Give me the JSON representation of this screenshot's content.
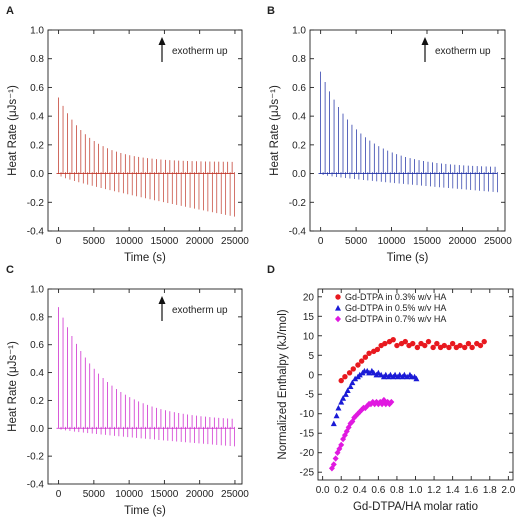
{
  "chart_data": [
    {
      "panel": "A",
      "type": "line",
      "xlabel": "Time (s)",
      "ylabel": "Heat Rate (μJs⁻¹)",
      "xlim": [
        -1500,
        26000
      ],
      "ylim": [
        -0.4,
        1.0
      ],
      "xticks": [
        "0",
        "5000",
        "10000",
        "15000",
        "20000",
        "25000"
      ],
      "xtick_values": [
        0,
        5000,
        10000,
        15000,
        20000,
        25000
      ],
      "yticks": [
        "-0.4",
        "-0.2",
        "0.0",
        "0.2",
        "0.4",
        "0.6",
        "0.8",
        "1.0"
      ],
      "ytick_values": [
        -0.4,
        -0.2,
        0.0,
        0.2,
        0.4,
        0.6,
        0.8,
        1.0
      ],
      "annotation": "exotherm up",
      "color": "#c0392b",
      "injections": {
        "count": 40,
        "start": 0,
        "end": 24600,
        "peak_start": 0.53,
        "peak_decay": 4500,
        "peak_floor": 0.08,
        "neg_start": -0.02,
        "neg_end": -0.3
      }
    },
    {
      "panel": "B",
      "type": "line",
      "xlabel": "Time (s)",
      "ylabel": "Heat Rate (μJs⁻¹)",
      "xlim": [
        -1500,
        26000
      ],
      "ylim": [
        -0.4,
        1.0
      ],
      "xticks": [
        "0",
        "5000",
        "10000",
        "15000",
        "20000",
        "25000"
      ],
      "xtick_values": [
        0,
        5000,
        10000,
        15000,
        20000,
        25000
      ],
      "yticks": [
        "-0.4",
        "-0.2",
        "0.0",
        "0.2",
        "0.4",
        "0.6",
        "0.8",
        "1.0"
      ],
      "ytick_values": [
        -0.4,
        -0.2,
        0.0,
        0.2,
        0.4,
        0.6,
        0.8,
        1.0
      ],
      "annotation": "exotherm up",
      "color": "#2233a6",
      "injections": {
        "count": 40,
        "start": 0,
        "end": 24600,
        "peak_start": 0.71,
        "peak_decay": 5500,
        "peak_floor": 0.04,
        "neg_start": -0.01,
        "neg_end": -0.13
      }
    },
    {
      "panel": "C",
      "type": "line",
      "xlabel": "Time (s)",
      "ylabel": "Heat Rate (μJs⁻¹)",
      "xlim": [
        -1500,
        26000
      ],
      "ylim": [
        -0.4,
        1.0
      ],
      "xticks": [
        "0",
        "5000",
        "10000",
        "15000",
        "20000",
        "25000"
      ],
      "xtick_values": [
        0,
        5000,
        10000,
        15000,
        20000,
        25000
      ],
      "yticks": [
        "-0.4",
        "-0.2",
        "0.0",
        "0.2",
        "0.4",
        "0.6",
        "0.8",
        "1.0"
      ],
      "ytick_values": [
        -0.4,
        -0.2,
        0.0,
        0.2,
        0.4,
        0.6,
        0.8,
        1.0
      ],
      "annotation": "exotherm up",
      "color": "#cc22cc",
      "injections": {
        "count": 40,
        "start": 0,
        "end": 24600,
        "peak_start": 0.87,
        "peak_decay": 6500,
        "peak_floor": 0.05,
        "neg_start": -0.01,
        "neg_end": -0.13
      }
    },
    {
      "panel": "D",
      "type": "scatter",
      "xlabel": "Gd-DTPA/HA molar ratio",
      "ylabel": "Normalized Enthalpy (kJ/mol)",
      "xlim": [
        -0.05,
        2.05
      ],
      "ylim": [
        -27,
        22
      ],
      "xticks": [
        "0.0",
        "0.2",
        "0.4",
        "0.6",
        "0.8",
        "1.0",
        "1.2",
        "1.4",
        "1.6",
        "1.8",
        "2.0"
      ],
      "xtick_values": [
        0.0,
        0.2,
        0.4,
        0.6,
        0.8,
        1.0,
        1.2,
        1.4,
        1.6,
        1.8,
        2.0
      ],
      "yticks": [
        "-25",
        "-20",
        "-15",
        "-10",
        "-5",
        "0",
        "5",
        "10",
        "15",
        "20"
      ],
      "ytick_values": [
        -25,
        -20,
        -15,
        -10,
        -5,
        0,
        5,
        10,
        15,
        20
      ],
      "legend_position": "top-right",
      "series": [
        {
          "name": "Gd-DTPA in 0.3% w/v HA",
          "marker": "circle",
          "color": "#e8191f",
          "points": [
            [
              0.2,
              -1.5
            ],
            [
              0.24,
              -0.5
            ],
            [
              0.29,
              0.5
            ],
            [
              0.33,
              1.5
            ],
            [
              0.38,
              2.5
            ],
            [
              0.42,
              3.5
            ],
            [
              0.46,
              4.5
            ],
            [
              0.5,
              5.5
            ],
            [
              0.55,
              6.0
            ],
            [
              0.59,
              6.5
            ],
            [
              0.63,
              7.5
            ],
            [
              0.67,
              8.0
            ],
            [
              0.72,
              8.5
            ],
            [
              0.76,
              9.0
            ],
            [
              0.8,
              7.5
            ],
            [
              0.85,
              8.0
            ],
            [
              0.89,
              8.5
            ],
            [
              0.93,
              7.5
            ],
            [
              0.97,
              8.0
            ],
            [
              1.02,
              7.0
            ],
            [
              1.06,
              8.0
            ],
            [
              1.1,
              7.5
            ],
            [
              1.14,
              8.5
            ],
            [
              1.19,
              7.0
            ],
            [
              1.23,
              8.0
            ],
            [
              1.27,
              7.0
            ],
            [
              1.31,
              7.5
            ],
            [
              1.36,
              7.0
            ],
            [
              1.4,
              8.0
            ],
            [
              1.44,
              7.0
            ],
            [
              1.48,
              7.5
            ],
            [
              1.53,
              7.0
            ],
            [
              1.57,
              8.0
            ],
            [
              1.61,
              7.0
            ],
            [
              1.66,
              8.0
            ],
            [
              1.7,
              7.5
            ],
            [
              1.74,
              8.5
            ]
          ]
        },
        {
          "name": "Gd-DTPA in 0.5% w/v HA",
          "marker": "triangle",
          "color": "#1a1ad6",
          "points": [
            [
              0.12,
              -12.5
            ],
            [
              0.15,
              -10.5
            ],
            [
              0.17,
              -8.5
            ],
            [
              0.2,
              -7.0
            ],
            [
              0.22,
              -6.0
            ],
            [
              0.25,
              -5.0
            ],
            [
              0.27,
              -4.0
            ],
            [
              0.3,
              -3.0
            ],
            [
              0.32,
              -2.0
            ],
            [
              0.35,
              -1.0
            ],
            [
              0.38,
              -0.5
            ],
            [
              0.4,
              0.0
            ],
            [
              0.43,
              0.5
            ],
            [
              0.45,
              1.0
            ],
            [
              0.48,
              1.0
            ],
            [
              0.5,
              0.5
            ],
            [
              0.53,
              1.0
            ],
            [
              0.55,
              0.5
            ],
            [
              0.58,
              0.0
            ],
            [
              0.6,
              0.5
            ],
            [
              0.63,
              0.0
            ],
            [
              0.66,
              -0.5
            ],
            [
              0.68,
              0.0
            ],
            [
              0.71,
              -0.5
            ],
            [
              0.73,
              0.0
            ],
            [
              0.76,
              -0.5
            ],
            [
              0.78,
              0.0
            ],
            [
              0.81,
              -0.5
            ],
            [
              0.83,
              0.0
            ],
            [
              0.86,
              -0.5
            ],
            [
              0.88,
              0.0
            ],
            [
              0.91,
              -0.5
            ],
            [
              0.94,
              0.0
            ],
            [
              0.96,
              -0.5
            ],
            [
              0.99,
              -0.5
            ],
            [
              1.01,
              -1.0
            ]
          ]
        },
        {
          "name": "Gd-DTPA in 0.7% w/v HA",
          "marker": "diamond",
          "color": "#e019e0",
          "points": [
            [
              0.1,
              -24.0
            ],
            [
              0.12,
              -23.0
            ],
            [
              0.14,
              -21.5
            ],
            [
              0.16,
              -20.0
            ],
            [
              0.18,
              -19.0
            ],
            [
              0.2,
              -18.0
            ],
            [
              0.22,
              -16.5
            ],
            [
              0.24,
              -15.5
            ],
            [
              0.26,
              -14.5
            ],
            [
              0.28,
              -13.5
            ],
            [
              0.3,
              -12.5
            ],
            [
              0.32,
              -12.0
            ],
            [
              0.34,
              -11.0
            ],
            [
              0.36,
              -10.5
            ],
            [
              0.38,
              -10.0
            ],
            [
              0.4,
              -9.5
            ],
            [
              0.42,
              -9.0
            ],
            [
              0.44,
              -8.5
            ],
            [
              0.46,
              -8.5
            ],
            [
              0.48,
              -8.0
            ],
            [
              0.5,
              -7.5
            ],
            [
              0.52,
              -7.5
            ],
            [
              0.54,
              -7.0
            ],
            [
              0.56,
              -7.5
            ],
            [
              0.58,
              -7.0
            ],
            [
              0.6,
              -7.5
            ],
            [
              0.62,
              -7.0
            ],
            [
              0.64,
              -7.5
            ],
            [
              0.66,
              -6.5
            ],
            [
              0.68,
              -7.5
            ],
            [
              0.7,
              -7.0
            ],
            [
              0.72,
              -7.5
            ],
            [
              0.74,
              -7.0
            ]
          ]
        }
      ]
    }
  ]
}
